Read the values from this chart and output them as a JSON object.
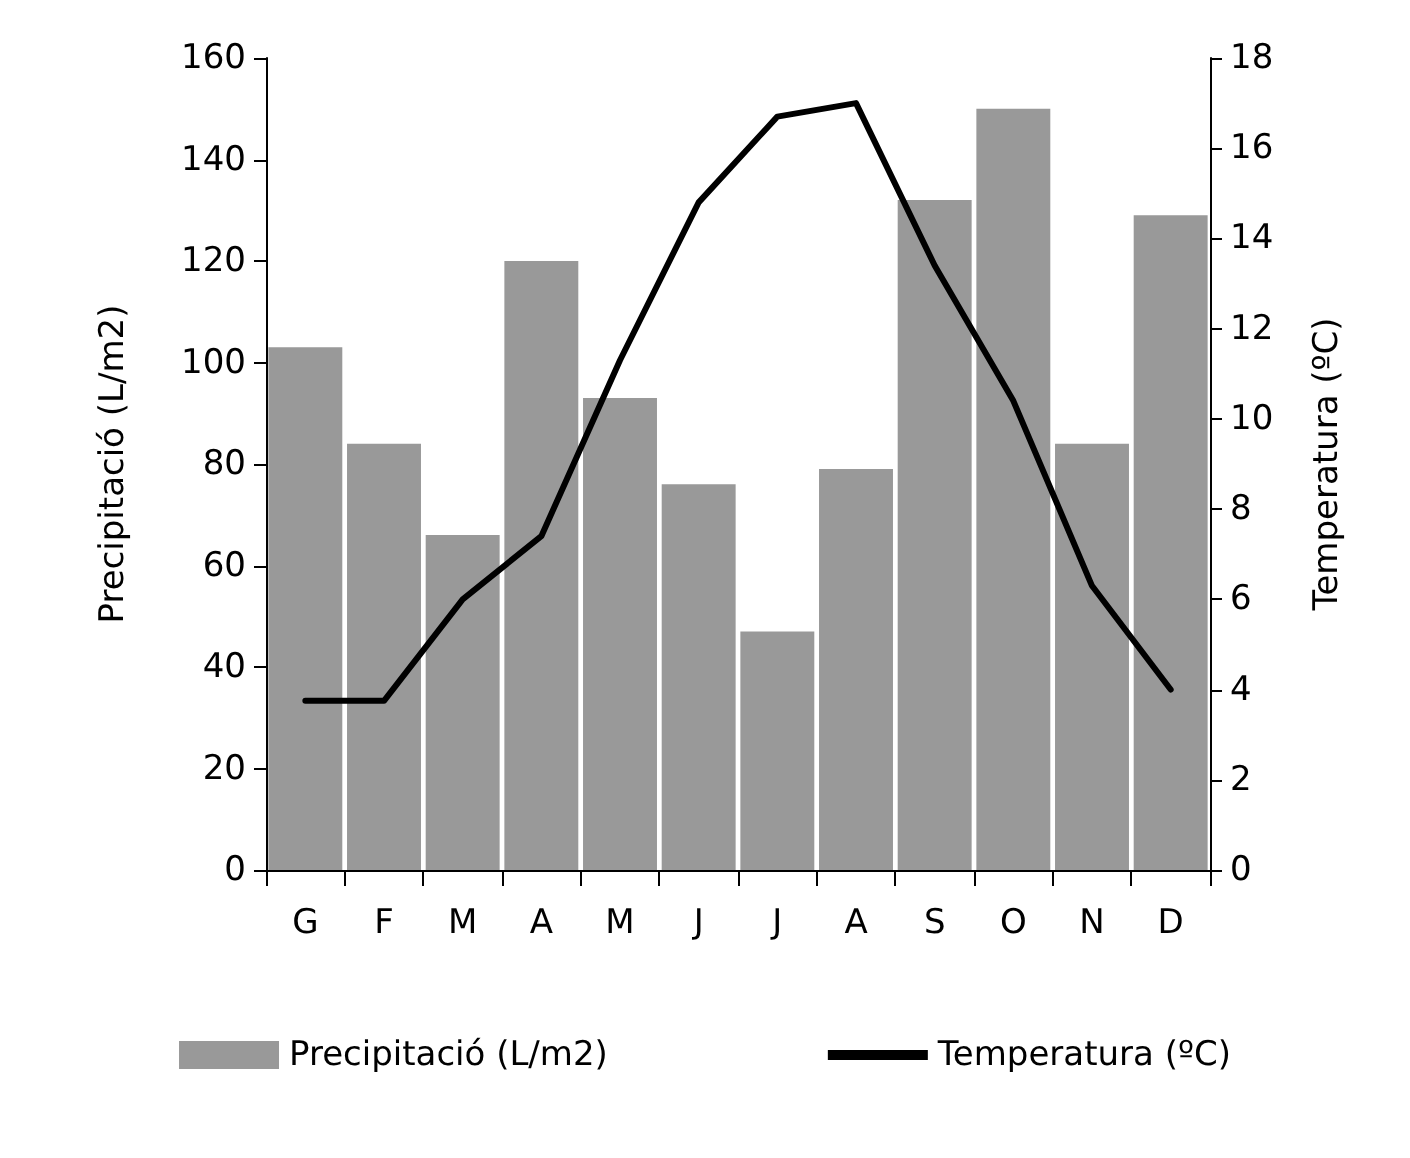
{
  "chart_data": {
    "type": "bar",
    "ylabel": "Precipitació (L/m2)",
    "y2label": "Temperatura (ºC)",
    "categories": [
      "G",
      "F",
      "M",
      "A",
      "M",
      "J",
      "J",
      "A",
      "S",
      "O",
      "N",
      "D"
    ],
    "series": [
      {
        "name": "Precipitació (L/m2)",
        "color": "#999999",
        "values": [
          103,
          84,
          66,
          120,
          93,
          76,
          47,
          79,
          132,
          150,
          84,
          129
        ]
      },
      {
        "name": "Temperatura (ºC)",
        "type": "line",
        "axis": "y2",
        "color": "#000000",
        "values": [
          3.75,
          3.75,
          6.0,
          7.4,
          11.3,
          14.8,
          16.7,
          17.0,
          13.4,
          10.4,
          6.3,
          4.0
        ]
      }
    ],
    "ylim": [
      0,
      160
    ],
    "yticks": [
      0,
      20,
      40,
      60,
      80,
      100,
      120,
      140,
      160
    ],
    "y2lim": [
      0,
      18
    ],
    "y2ticks": [
      0,
      2,
      4,
      6,
      8,
      10,
      12,
      14,
      16,
      18
    ],
    "legend": "bottom",
    "grid": false,
    "marker": "none",
    "line_style": "solid"
  }
}
